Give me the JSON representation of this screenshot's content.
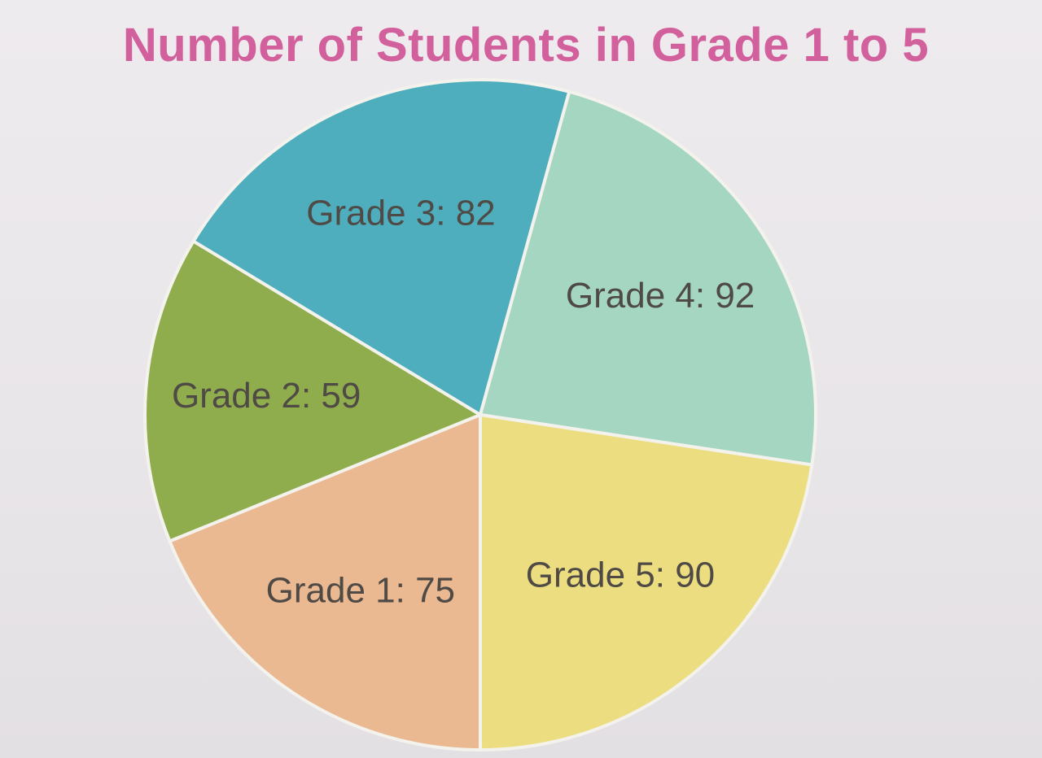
{
  "chart_data": {
    "type": "pie",
    "title": "Number of Students in Grade 1 to 5",
    "slices": [
      {
        "label": "Grade 1: 75",
        "category": "Grade 1",
        "value": 75,
        "color": "#eab891"
      },
      {
        "label": "Grade 2: 59",
        "category": "Grade 2",
        "value": 59,
        "color": "#8fad4c"
      },
      {
        "label": "Grade 3: 82",
        "category": "Grade 3",
        "value": 82,
        "color": "#4eaebd"
      },
      {
        "label": "Grade 4: 92",
        "category": "Grade 4",
        "value": 92,
        "color": "#a4d6c2"
      },
      {
        "label": "Grade 5: 90",
        "category": "Grade 5",
        "value": 90,
        "color": "#ebdd80"
      }
    ],
    "legend": "none",
    "grid": false
  }
}
